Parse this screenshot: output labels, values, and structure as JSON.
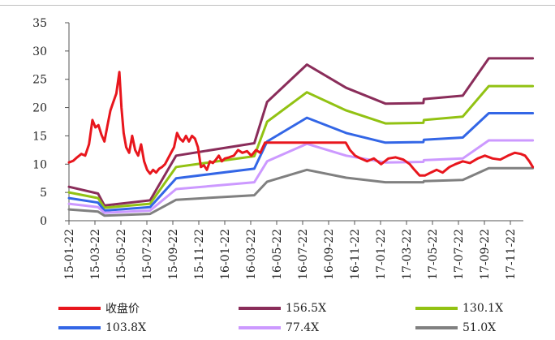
{
  "chart_data": {
    "type": "line",
    "title": "",
    "xlabel": "",
    "ylabel": "",
    "ylim": [
      0,
      35
    ],
    "yticks": [
      0,
      5,
      10,
      15,
      20,
      25,
      30,
      35
    ],
    "xticks": [
      "15-01-22",
      "15-03-22",
      "15-05-22",
      "15-07-22",
      "15-09-22",
      "15-11-22",
      "16-01-22",
      "16-03-22",
      "16-05-22",
      "16-07-22",
      "16-09-22",
      "16-11-22",
      "17-01-22",
      "17-03-22",
      "17-05-22",
      "17-07-22",
      "17-09-22",
      "17-11-22"
    ],
    "grid": false,
    "legend_position": "bottom",
    "series": [
      {
        "name": "收盘价",
        "color": "#e8161d",
        "width": 3,
        "x": [
          "2015-01-22",
          "2015-02-01",
          "2015-02-10",
          "2015-02-20",
          "2015-03-01",
          "2015-03-10",
          "2015-03-18",
          "2015-03-25",
          "2015-04-01",
          "2015-04-08",
          "2015-04-15",
          "2015-04-22",
          "2015-04-29",
          "2015-05-06",
          "2015-05-13",
          "2015-05-20",
          "2015-05-25",
          "2015-05-30",
          "2015-06-05",
          "2015-06-12",
          "2015-06-19",
          "2015-06-26",
          "2015-07-03",
          "2015-07-10",
          "2015-07-17",
          "2015-07-24",
          "2015-07-31",
          "2015-08-07",
          "2015-08-14",
          "2015-08-21",
          "2015-08-28",
          "2015-09-04",
          "2015-09-11",
          "2015-09-18",
          "2015-09-25",
          "2015-10-02",
          "2015-10-09",
          "2015-10-16",
          "2015-10-23",
          "2015-10-30",
          "2015-11-06",
          "2015-11-13",
          "2015-11-20",
          "2015-11-27",
          "2015-12-04",
          "2015-12-11",
          "2015-12-18",
          "2015-12-25",
          "2016-01-01",
          "2016-01-08",
          "2016-01-15",
          "2016-01-22",
          "2016-02-01",
          "2016-02-12",
          "2016-02-22",
          "2016-03-03",
          "2016-03-14",
          "2016-03-24",
          "2016-04-04",
          "2016-04-14",
          "2016-04-25",
          "2016-05-06",
          "2016-05-16",
          "2016-06-01",
          "2016-07-01",
          "2016-08-01",
          "2016-09-01",
          "2016-10-01",
          "2016-10-31",
          "2016-11-10",
          "2016-11-22",
          "2016-12-05",
          "2016-12-20",
          "2017-01-05",
          "2017-01-22",
          "2017-02-08",
          "2017-02-25",
          "2017-03-15",
          "2017-03-30",
          "2017-04-10",
          "2017-04-22",
          "2017-05-05",
          "2017-05-18",
          "2017-06-01",
          "2017-06-15",
          "2017-07-01",
          "2017-07-15",
          "2017-08-01",
          "2017-08-18",
          "2017-09-05",
          "2017-09-22",
          "2017-10-10",
          "2017-10-28",
          "2017-11-15",
          "2017-12-01",
          "2017-12-15",
          "2017-12-25",
          "2018-01-04",
          "2018-01-12"
        ],
        "values": [
          10.3,
          10.6,
          11.2,
          11.8,
          11.5,
          13.5,
          17.8,
          16.5,
          16.9,
          15.2,
          14.0,
          16.8,
          19.5,
          21.0,
          22.5,
          26.3,
          20.0,
          15.5,
          13.0,
          12.0,
          15.0,
          12.5,
          11.5,
          13.5,
          10.5,
          9.0,
          8.3,
          9.0,
          8.5,
          9.2,
          9.5,
          10.0,
          11.0,
          12.0,
          13.0,
          15.5,
          14.5,
          14.0,
          15.0,
          14.0,
          15.0,
          14.5,
          13.0,
          9.5,
          9.8,
          9.0,
          10.5,
          10.2,
          10.8,
          11.5,
          10.5,
          11.0,
          11.2,
          11.5,
          12.5,
          12.0,
          12.3,
          11.5,
          12.5,
          12.0,
          13.8,
          13.8,
          13.8,
          13.8,
          13.8,
          13.8,
          13.8,
          13.8,
          13.8,
          12.5,
          11.5,
          11.0,
          10.5,
          11.0,
          10.0,
          11.0,
          11.2,
          10.8,
          10.0,
          9.0,
          8.0,
          8.0,
          8.5,
          9.0,
          8.5,
          9.5,
          10.0,
          10.5,
          10.2,
          11.0,
          11.5,
          11.0,
          10.8,
          11.5,
          12.0,
          11.8,
          11.5,
          10.5,
          9.5
        ]
      },
      {
        "name": "156.5X",
        "color": "#8a2d5a",
        "width": 3,
        "x": [
          "2015-01-22",
          "2015-03-31",
          "2015-04-15",
          "2015-07-31",
          "2015-09-30",
          "2016-03-31",
          "2016-04-30",
          "2016-08-01",
          "2016-11-01",
          "2017-02-01",
          "2017-05-01",
          "2017-05-02",
          "2017-08-01",
          "2017-10-01",
          "2018-01-12"
        ],
        "values": [
          6.0,
          4.8,
          2.7,
          3.6,
          11.5,
          13.7,
          21.0,
          27.6,
          23.5,
          20.7,
          20.8,
          21.5,
          22.1,
          28.7,
          28.7
        ]
      },
      {
        "name": "130.1X",
        "color": "#92c213",
        "width": 3,
        "x": [
          "2015-01-22",
          "2015-03-31",
          "2015-04-15",
          "2015-07-31",
          "2015-09-30",
          "2016-03-31",
          "2016-04-30",
          "2016-08-01",
          "2016-11-01",
          "2017-02-01",
          "2017-05-01",
          "2017-05-02",
          "2017-08-01",
          "2017-10-01",
          "2018-01-12"
        ],
        "values": [
          5.0,
          4.0,
          2.3,
          3.0,
          9.5,
          11.4,
          17.5,
          22.7,
          19.5,
          17.2,
          17.3,
          17.8,
          18.4,
          23.8,
          23.8
        ]
      },
      {
        "name": "103.8X",
        "color": "#3366e6",
        "width": 3,
        "x": [
          "2015-01-22",
          "2015-03-31",
          "2015-04-15",
          "2015-07-31",
          "2015-09-30",
          "2016-03-31",
          "2016-04-30",
          "2016-08-01",
          "2016-11-01",
          "2017-02-01",
          "2017-05-01",
          "2017-05-02",
          "2017-08-01",
          "2017-10-01",
          "2018-01-12"
        ],
        "values": [
          4.0,
          3.2,
          1.8,
          2.4,
          7.5,
          9.2,
          14.0,
          18.2,
          15.5,
          13.8,
          13.9,
          14.3,
          14.7,
          19.0,
          19.0
        ]
      },
      {
        "name": "77.4X",
        "color": "#cc99ff",
        "width": 3,
        "x": [
          "2015-01-22",
          "2015-03-31",
          "2015-04-15",
          "2015-07-31",
          "2015-09-30",
          "2016-03-31",
          "2016-04-30",
          "2016-08-01",
          "2016-11-01",
          "2017-02-01",
          "2017-05-01",
          "2017-05-02",
          "2017-08-01",
          "2017-10-01",
          "2018-01-12"
        ],
        "values": [
          3.0,
          2.4,
          1.4,
          1.8,
          5.6,
          6.8,
          10.5,
          13.6,
          11.5,
          10.3,
          10.4,
          10.7,
          11.0,
          14.2,
          14.2
        ]
      },
      {
        "name": "51.0X",
        "color": "#808080",
        "width": 3,
        "x": [
          "2015-01-22",
          "2015-03-31",
          "2015-04-15",
          "2015-07-31",
          "2015-09-30",
          "2016-03-31",
          "2016-04-30",
          "2016-08-01",
          "2016-11-01",
          "2017-02-01",
          "2017-05-01",
          "2017-05-02",
          "2017-08-01",
          "2017-10-01",
          "2018-01-12"
        ],
        "values": [
          2.0,
          1.6,
          0.9,
          1.2,
          3.7,
          4.5,
          6.9,
          9.0,
          7.6,
          6.8,
          6.8,
          7.0,
          7.2,
          9.3,
          9.3
        ]
      }
    ]
  }
}
